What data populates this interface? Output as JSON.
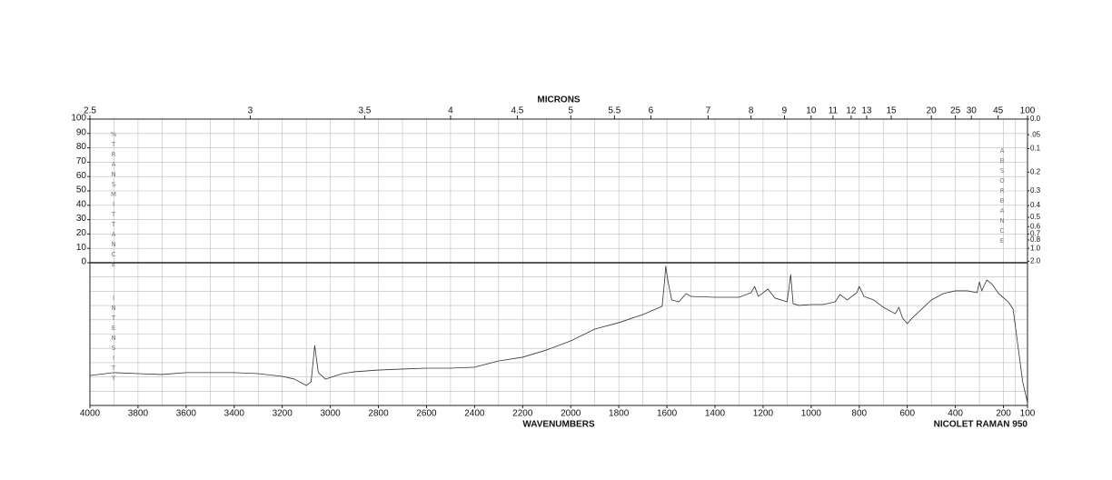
{
  "chart_data": {
    "type": "line",
    "top_axis_label": "MICRONS",
    "x_label": "WAVENUMBERS",
    "instrument": "NICOLET RAMAN 950",
    "y_label": "%TRANSMITTANCE",
    "y2_label": "ABSORBANCE",
    "lower_label": "INTENSITY",
    "xlim": [
      4000,
      100
    ],
    "xticks": [
      4000,
      3800,
      3600,
      3400,
      3200,
      3000,
      2800,
      2600,
      2400,
      2200,
      2000,
      1800,
      1600,
      1400,
      1200,
      1000,
      800,
      600,
      400,
      200,
      100
    ],
    "micron_ticks": [
      2.5,
      3,
      3.5,
      4,
      4.5,
      5,
      5.5,
      6,
      7,
      8,
      9,
      10,
      11,
      12,
      13,
      15,
      20,
      25,
      30,
      45,
      100
    ],
    "ylim": [
      0,
      100
    ],
    "yticks": [
      0,
      10,
      20,
      30,
      40,
      50,
      60,
      70,
      80,
      90,
      100
    ],
    "y2ticks": [
      {
        "value": 0,
        "label": "0.0"
      },
      {
        "value": 0.05,
        "label": ".05"
      },
      0.1,
      0.2,
      0.3,
      0.4,
      0.5,
      0.6,
      0.7,
      0.8,
      {
        "value": 1,
        "label": "1.0"
      },
      {
        "value": 2,
        "label": "2.0"
      }
    ],
    "grid": true,
    "series": [
      {
        "color": "#333333",
        "ylim": [
          0,
          100
        ],
        "x": [
          4000,
          3900,
          3800,
          3700,
          3600,
          3500,
          3400,
          3300,
          3200,
          3150,
          3100,
          3080,
          3065,
          3050,
          3020,
          2950,
          2900,
          2800,
          2700,
          2600,
          2500,
          2400,
          2300,
          2200,
          2100,
          2000,
          1900,
          1800,
          1700,
          1620,
          1610,
          1605,
          1595,
          1580,
          1550,
          1520,
          1500,
          1400,
          1300,
          1250,
          1235,
          1220,
          1180,
          1150,
          1100,
          1085,
          1075,
          1050,
          1000,
          950,
          900,
          880,
          850,
          810,
          800,
          780,
          740,
          700,
          650,
          635,
          620,
          600,
          580,
          500,
          450,
          400,
          350,
          310,
          300,
          290,
          270,
          250,
          220,
          180,
          160,
          140,
          120,
          100
        ],
        "values": [
          21.0,
          23.0,
          22.3,
          21.7,
          23.0,
          23.0,
          23.0,
          22.3,
          20.4,
          18.5,
          14.0,
          16.6,
          42.0,
          23.0,
          18.5,
          22.3,
          23.6,
          24.8,
          25.5,
          26.1,
          26.1,
          26.8,
          31.2,
          33.8,
          38.9,
          45.2,
          53.5,
          58.0,
          63.7,
          69.4,
          86.6,
          97.5,
          86.6,
          73.9,
          72.6,
          78.4,
          76.4,
          75.8,
          75.8,
          79.0,
          83.4,
          76.4,
          81.5,
          75.2,
          72.6,
          91.7,
          71.3,
          70.1,
          70.7,
          70.7,
          72.6,
          77.7,
          73.9,
          79.0,
          83.4,
          76.4,
          73.9,
          68.8,
          64.3,
          68.8,
          61.2,
          57.3,
          61.2,
          73.9,
          78.4,
          80.3,
          80.3,
          79.0,
          86.6,
          80.3,
          87.9,
          85.4,
          78.4,
          72.6,
          67.5,
          42.0,
          16.6,
          1.9
        ]
      }
    ]
  }
}
